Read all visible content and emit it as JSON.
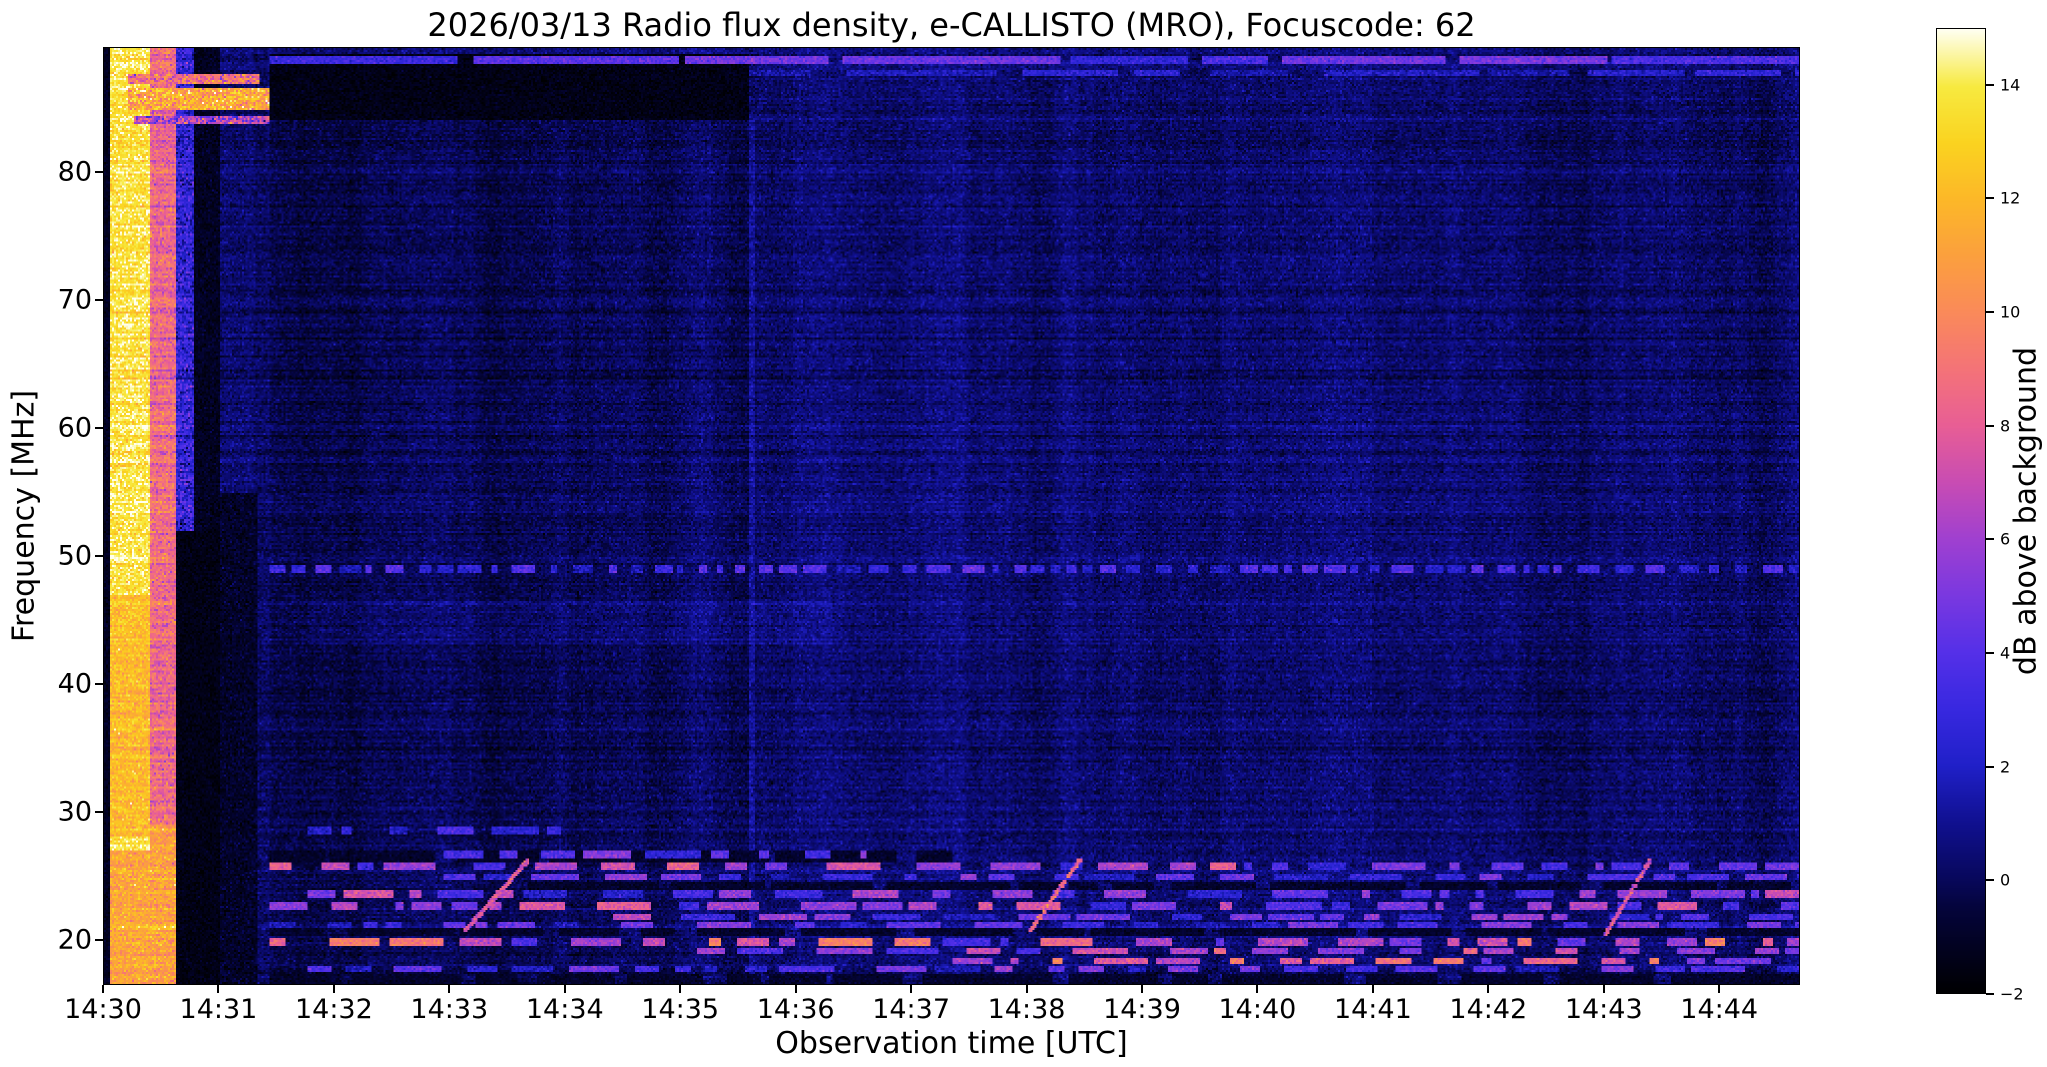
{
  "chart_data": {
    "type": "heatmap",
    "title": "2026/03/13  Radio flux density, e-CALLISTO (MRO), Focuscode: 62",
    "xlabel": "Observation time [UTC]",
    "ylabel": "Frequency [MHz]",
    "colorbar_label": "dB above background",
    "x_axis": {
      "tick_labels": [
        "14:30",
        "14:31",
        "14:32",
        "14:33",
        "14:34",
        "14:35",
        "14:36",
        "14:37",
        "14:38",
        "14:39",
        "14:40",
        "14:41",
        "14:42",
        "14:43",
        "14:44"
      ],
      "tick_seconds": [
        0,
        60,
        120,
        180,
        240,
        300,
        360,
        420,
        480,
        540,
        600,
        660,
        720,
        780,
        840
      ],
      "duration_seconds": 882,
      "start_time": "14:30"
    },
    "y_axis": {
      "ticks": [
        20,
        30,
        40,
        50,
        60,
        70,
        80
      ],
      "top_mhz": 89.8,
      "bottom_mhz": 16.5
    },
    "colorbar": {
      "ticks": [
        14,
        12,
        10,
        8,
        6,
        4,
        2,
        0,
        -2
      ],
      "vmin": -2,
      "vmax": 15
    },
    "colormap_stops": [
      [
        0.0,
        "#000002"
      ],
      [
        0.088,
        "#04043c"
      ],
      [
        0.118,
        "#08085c"
      ],
      [
        0.176,
        "#101090"
      ],
      [
        0.235,
        "#2020c8"
      ],
      [
        0.294,
        "#3828e0"
      ],
      [
        0.353,
        "#5530e8"
      ],
      [
        0.412,
        "#7a38e0"
      ],
      [
        0.471,
        "#a040d0"
      ],
      [
        0.529,
        "#c84cb4"
      ],
      [
        0.588,
        "#e85e96"
      ],
      [
        0.647,
        "#f47378"
      ],
      [
        0.706,
        "#fa8a5a"
      ],
      [
        0.765,
        "#fba03e"
      ],
      [
        0.824,
        "#fcb828"
      ],
      [
        0.882,
        "#fad320"
      ],
      [
        0.941,
        "#f7ea40"
      ],
      [
        1.0,
        "#fffff0"
      ]
    ],
    "background": {
      "mean": 0.32,
      "sd": 0.5,
      "row_sd": 0.28,
      "bright_row_prob": 0.05,
      "bright_row_boost": 0.7,
      "col_walk": 0.08,
      "col_decay": 0.9
    },
    "features": [
      {
        "kind": "fill",
        "t": [
          0.0,
          0.004
        ],
        "f": [
          16.5,
          89.8
        ],
        "v": -1.2,
        "noise": 0.3
      },
      {
        "kind": "fill",
        "t": [
          0.004,
          0.0272
        ],
        "f": [
          16.5,
          89.8
        ],
        "v": 13.8,
        "noise": 0.8,
        "row_gain": 1.6
      },
      {
        "kind": "add",
        "t": [
          0.004,
          0.0272
        ],
        "f": [
          28,
          47
        ],
        "dv": -1.6
      },
      {
        "kind": "add",
        "t": [
          0.004,
          0.0272
        ],
        "f": [
          16.5,
          27
        ],
        "dv": -2.6
      },
      {
        "kind": "fill",
        "t": [
          0.0272,
          0.042
        ],
        "f": [
          16.5,
          89.8
        ],
        "v": 8.6,
        "noise": 0.9,
        "row_gain": 2.2
      },
      {
        "kind": "add",
        "t": [
          0.0272,
          0.042
        ],
        "f": [
          16.5,
          29
        ],
        "dv": 2.4
      },
      {
        "kind": "fill",
        "t": [
          0.042,
          0.0533
        ],
        "f": [
          52,
          89.8
        ],
        "v": 2.6,
        "noise": 1.1,
        "row_gain": 1.5
      },
      {
        "kind": "fill",
        "t": [
          0.042,
          0.068
        ],
        "f": [
          16.5,
          52
        ],
        "v": -1.5,
        "noise": 0.3
      },
      {
        "kind": "fill",
        "t": [
          0.0533,
          0.068
        ],
        "f": [
          52,
          89.8
        ],
        "v": -1.2,
        "noise": 0.4
      },
      {
        "kind": "fill",
        "t": [
          0.068,
          0.0907
        ],
        "f": [
          16.5,
          55
        ],
        "v": -1.0,
        "noise": 0.5
      },
      {
        "kind": "fill",
        "t": [
          0.0136,
          0.0975
        ],
        "f": [
          85.0,
          86.6
        ],
        "v": 11.5,
        "noise": 1.6,
        "row_gain": 1.0
      },
      {
        "kind": "fill",
        "t": [
          0.0136,
          0.092
        ],
        "f": [
          87.0,
          87.7
        ],
        "v": 9.0,
        "noise": 1.6
      },
      {
        "kind": "fill",
        "t": [
          0.018,
          0.0975
        ],
        "f": [
          83.8,
          84.5
        ],
        "v": 6.5,
        "noise": 1.8
      },
      {
        "kind": "fill",
        "t": [
          0.0975,
          0.381
        ],
        "f": [
          84.2,
          89.3
        ],
        "v": -1.5,
        "noise": 0.35
      },
      {
        "kind": "add",
        "t": [
          0.0975,
          0.381
        ],
        "f": [
          16.5,
          84.2
        ],
        "dv": -0.4
      },
      {
        "kind": "add",
        "t": [
          0.38,
          0.384
        ],
        "f": [
          16.5,
          84.2
        ],
        "dv": 0.9
      },
      {
        "kind": "dashrow",
        "t": [
          0.0975,
          1.0
        ],
        "f": [
          88.55,
          89.15
        ],
        "v": 3.4,
        "spread": 1.2,
        "seg": [
          30,
          120
        ],
        "gap": [
          2,
          8
        ]
      },
      {
        "kind": "dashrow",
        "t": [
          0.381,
          1.0
        ],
        "f": [
          87.6,
          88.05
        ],
        "v": 1.8,
        "spread": 0.8,
        "seg": [
          20,
          80
        ],
        "gap": [
          4,
          20
        ]
      },
      {
        "kind": "dashrow",
        "t": [
          0.0975,
          1.0
        ],
        "f": [
          48.65,
          49.3
        ],
        "v": 2.6,
        "spread": 1.4,
        "seg": [
          3,
          12
        ],
        "gap": [
          2,
          8
        ]
      },
      {
        "kind": "add",
        "t": [
          0.12,
          0.43
        ],
        "f": [
          43,
          46.5
        ],
        "dv": 0.35
      }
    ],
    "dark_rows": [
      {
        "f": [
          20.2,
          20.8
        ],
        "t": [
          0.098,
          1.0
        ]
      },
      {
        "f": [
          23.8,
          24.5
        ],
        "t": [
          0.25,
          1.0
        ]
      },
      {
        "f": [
          16.5,
          17.3
        ],
        "t": [
          0.098,
          1.0
        ]
      },
      {
        "f": [
          26.1,
          26.9
        ],
        "t": [
          0.098,
          0.5
        ]
      }
    ],
    "rfi_rows": [
      {
        "f": [
          25.4,
          26.0
        ],
        "t": [
          0.098,
          1.0
        ],
        "v": 4.5,
        "spread": 3.0
      },
      {
        "f": [
          24.6,
          25.1
        ],
        "t": [
          0.2,
          1.0
        ],
        "v": 3.2,
        "spread": 2.5
      },
      {
        "f": [
          23.2,
          23.8
        ],
        "t": [
          0.12,
          1.0
        ],
        "v": 3.8,
        "spread": 2.8
      },
      {
        "f": [
          22.3,
          22.9
        ],
        "t": [
          0.098,
          1.0
        ],
        "v": 4.6,
        "spread": 3.0
      },
      {
        "f": [
          21.5,
          22.0
        ],
        "t": [
          0.3,
          1.0
        ],
        "v": 3.5,
        "spread": 2.5
      },
      {
        "f": [
          20.9,
          21.4
        ],
        "t": [
          0.098,
          1.0
        ],
        "v": 2.8,
        "spread": 2.0
      },
      {
        "f": [
          19.4,
          20.1
        ],
        "t": [
          0.098,
          1.0
        ],
        "v": 5.5,
        "spread": 3.2
      },
      {
        "f": [
          18.8,
          19.3
        ],
        "t": [
          0.35,
          1.0
        ],
        "v": 4.5,
        "spread": 3.0
      },
      {
        "f": [
          18.0,
          18.6
        ],
        "t": [
          0.5,
          1.0
        ],
        "v": 6.0,
        "spread": 3.2
      },
      {
        "f": [
          17.4,
          17.9
        ],
        "t": [
          0.12,
          1.0
        ],
        "v": 3.0,
        "spread": 2.2
      },
      {
        "f": [
          28.2,
          28.8
        ],
        "t": [
          0.12,
          0.27
        ],
        "v": 2.2,
        "spread": 1.2
      },
      {
        "f": [
          26.3,
          26.9
        ],
        "t": [
          0.2,
          0.45
        ],
        "v": 3.0,
        "spread": 1.8
      }
    ],
    "diagonal_bursts": [
      {
        "t0": 0.212,
        "f0": 20.8,
        "t1": 0.248,
        "f1": 26.3,
        "v": 7.0
      },
      {
        "t0": 0.545,
        "f0": 20.8,
        "t1": 0.575,
        "f1": 26.5,
        "v": 8.0
      },
      {
        "t0": 0.885,
        "f0": 20.5,
        "t1": 0.91,
        "f1": 26.3,
        "v": 7.0
      }
    ]
  }
}
